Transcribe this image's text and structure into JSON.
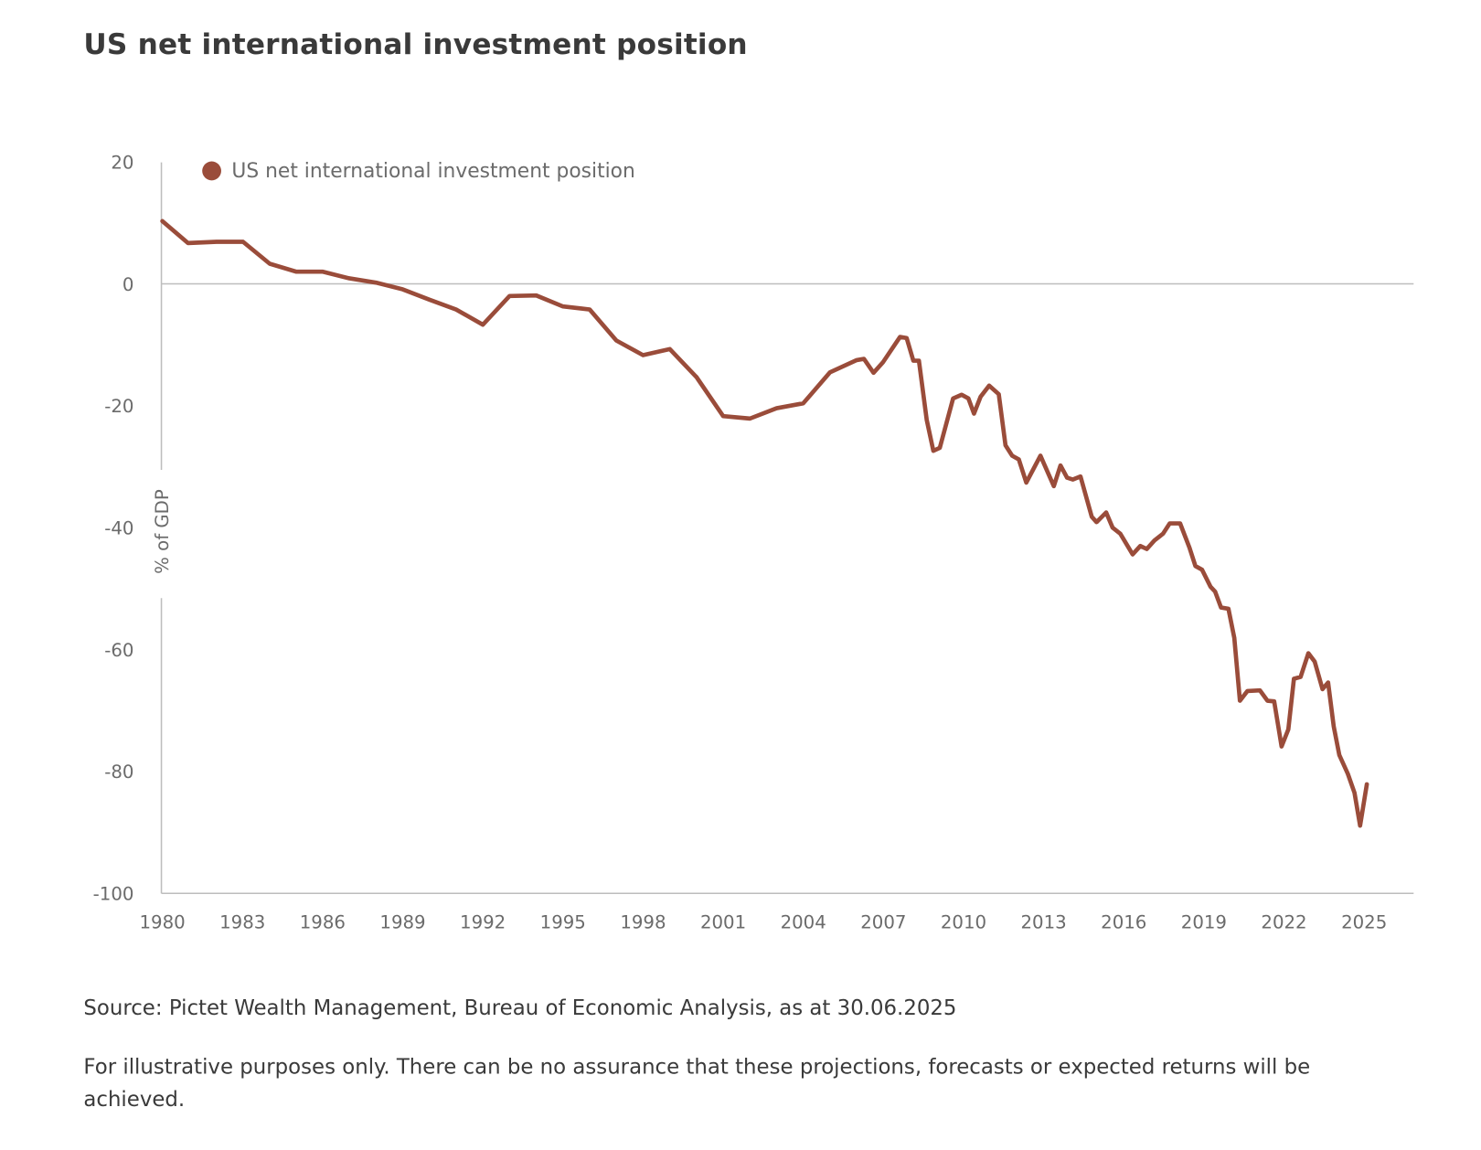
{
  "title": "US net international investment position",
  "source": "Source: Pictet Wealth Management, Bureau of Economic Analysis, as at 30.06.2025",
  "disclaimer": "For illustrative purposes only. There can be no assurance that these projections, forecasts or expected returns will be achieved.",
  "chart_data": {
    "type": "line",
    "title": "US net international investment position",
    "xlabel": "",
    "ylabel": "% of GDP",
    "xlim": [
      1980,
      2027.5
    ],
    "ylim": [
      -100,
      20
    ],
    "x_ticks": [
      "1980",
      "1983",
      "1986",
      "1989",
      "1992",
      "1995",
      "1998",
      "2001",
      "2004",
      "2007",
      "2010",
      "2013",
      "2016",
      "2019",
      "2022",
      "2025"
    ],
    "y_ticks": [
      "20",
      "0",
      "-20",
      "-40",
      "-60",
      "-80",
      "-100"
    ],
    "grid": false,
    "legend": {
      "position": "top-left",
      "entries": [
        "US net international investment position"
      ]
    },
    "colors": {
      "series": "#9a4c3a",
      "axis": "#bdbdbd"
    },
    "series": [
      {
        "name": "US net international investment position",
        "x": [
          1980.0,
          1980.96,
          1982.03,
          1983.02,
          1984.02,
          1985.02,
          1986.01,
          1987.0,
          1988.0,
          1989.0,
          1990.0,
          1991.0,
          1992.0,
          1993.0,
          1994.0,
          1995.0,
          1996.0,
          1997.0,
          1998.0,
          1999.0,
          2000.0,
          2001.0,
          2002.0,
          2003.0,
          2004.0,
          2005.0,
          2006.0,
          2006.27,
          2006.63,
          2006.98,
          2007.62,
          2007.87,
          2008.12,
          2008.33,
          2008.62,
          2008.87,
          2009.11,
          2009.61,
          2009.93,
          2010.18,
          2010.39,
          2010.64,
          2010.96,
          2011.32,
          2011.57,
          2011.82,
          2012.07,
          2012.35,
          2012.88,
          2013.38,
          2013.63,
          2013.88,
          2014.09,
          2014.38,
          2014.8,
          2014.98,
          2015.34,
          2015.58,
          2015.87,
          2016.33,
          2016.62,
          2016.86,
          2017.15,
          2017.47,
          2017.72,
          2018.11,
          2018.46,
          2018.68,
          2018.93,
          2019.25,
          2019.42,
          2019.64,
          2019.92,
          2020.14,
          2020.35,
          2020.63,
          2021.1,
          2021.38,
          2021.63,
          2021.91,
          2022.16,
          2022.37,
          2022.62,
          2022.91,
          2023.15,
          2023.44,
          2023.65,
          2023.86,
          2024.07,
          2024.39,
          2024.64,
          2024.85,
          2025.1
        ],
        "y": [
          10.3,
          6.7,
          6.9,
          6.9,
          3.3,
          2.0,
          2.0,
          0.9,
          0.2,
          -0.9,
          -2.6,
          -4.2,
          -6.7,
          -2.0,
          -1.9,
          -3.7,
          -4.2,
          -9.3,
          -11.7,
          -10.7,
          -15.3,
          -21.7,
          -22.1,
          -20.4,
          -19.6,
          -14.5,
          -12.5,
          -12.3,
          -14.6,
          -12.9,
          -8.7,
          -8.9,
          -12.6,
          -12.6,
          -22.3,
          -27.4,
          -26.9,
          -18.8,
          -18.2,
          -18.8,
          -21.3,
          -18.5,
          -16.7,
          -18.1,
          -26.5,
          -28.2,
          -28.8,
          -32.6,
          -28.2,
          -33.2,
          -29.8,
          -31.8,
          -32.1,
          -31.6,
          -38.2,
          -39.1,
          -37.5,
          -40.0,
          -41.0,
          -44.4,
          -43.0,
          -43.5,
          -42.1,
          -41.0,
          -39.3,
          -39.3,
          -43.3,
          -46.3,
          -46.9,
          -49.7,
          -50.5,
          -53.1,
          -53.3,
          -58.1,
          -68.4,
          -66.8,
          -66.7,
          -68.4,
          -68.5,
          -75.9,
          -73.1,
          -64.8,
          -64.5,
          -60.6,
          -62.0,
          -66.5,
          -65.4,
          -72.6,
          -77.3,
          -80.4,
          -83.5,
          -88.9,
          -82.1
        ]
      }
    ]
  }
}
